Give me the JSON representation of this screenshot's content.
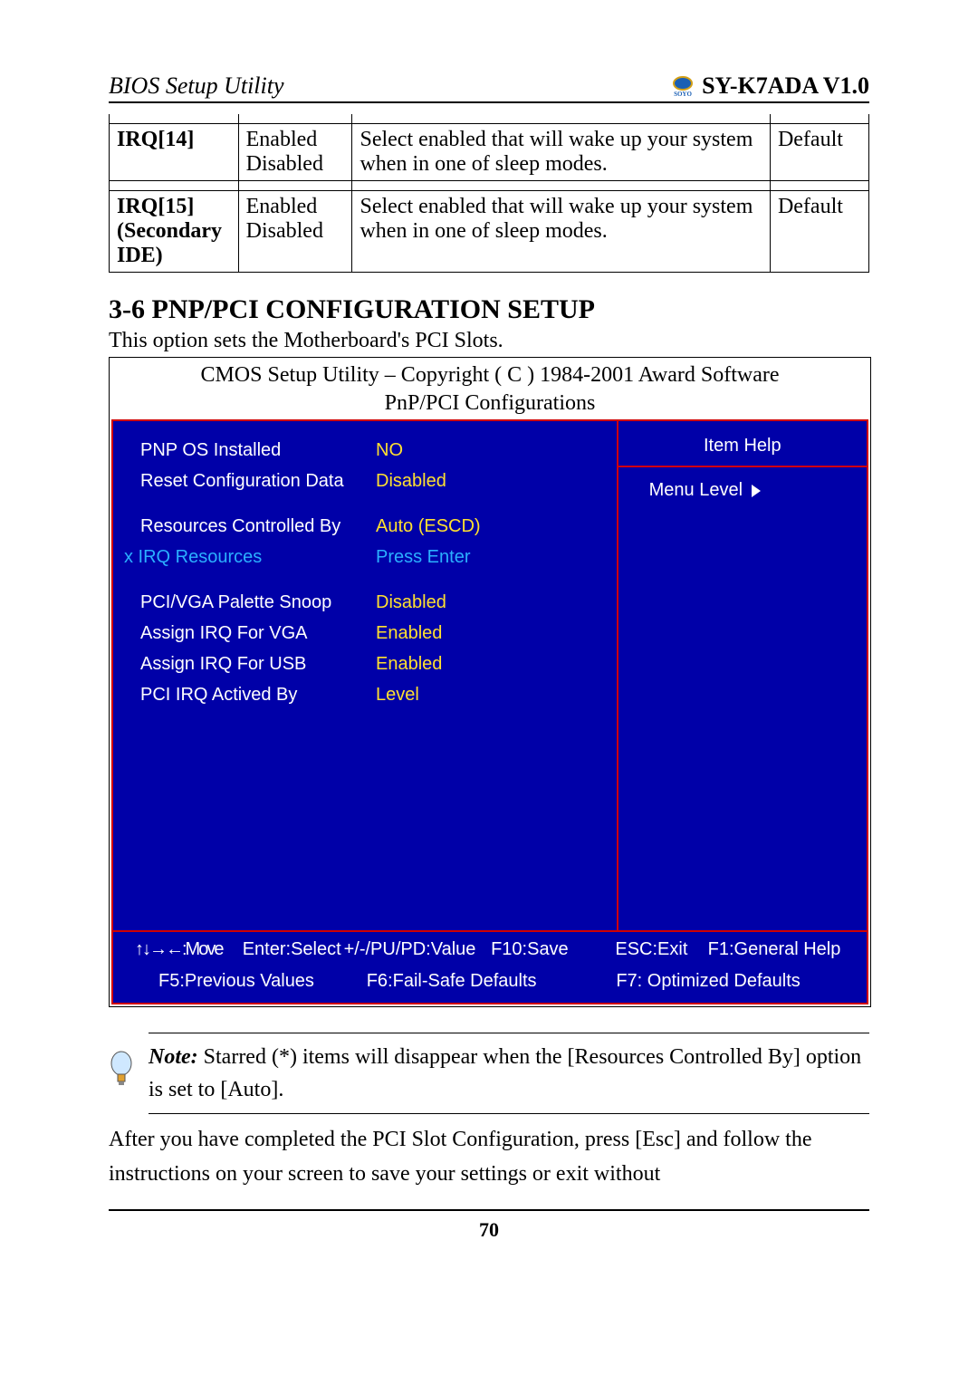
{
  "header": {
    "left": "BIOS Setup Utility",
    "right": "SY-K7ADA V1.0"
  },
  "irq_table": {
    "rows": [
      {
        "name": "IRQ[14]",
        "options": "Enabled\nDisabled",
        "desc": "Select enabled that will wake up your system when in one of sleep modes.",
        "def": "Default"
      },
      {
        "name": "IRQ[15] (Secondary IDE)",
        "options": "Enabled\nDisabled",
        "desc": "Select enabled that will wake up your system when in one of sleep modes.",
        "def": "Default"
      }
    ]
  },
  "section": {
    "heading": "3-6  PNP/PCI CONFIGURATION SETUP",
    "intro": "This option sets the Motherboard's PCI Slots."
  },
  "bios": {
    "title1": "CMOS Setup Utility – Copyright ( C ) 1984-2001 Award Software",
    "title2": "PnP/PCI Configurations",
    "items": [
      {
        "label": "PNP OS Installed",
        "value": "NO",
        "lclass": "",
        "vclass": ""
      },
      {
        "label": "Reset Configuration Data",
        "value": "Disabled",
        "lclass": "",
        "vclass": ""
      },
      {
        "spacer": true
      },
      {
        "label": "Resources Controlled By",
        "value": "Auto (ESCD)",
        "lclass": "",
        "vclass": ""
      },
      {
        "label": "x IRQ Resources",
        "value": "Press Enter",
        "lclass": "blue",
        "vclass": "cyan",
        "outdent": true
      },
      {
        "spacer": true
      },
      {
        "label": "PCI/VGA Palette Snoop",
        "value": "Disabled",
        "lclass": "",
        "vclass": ""
      },
      {
        "label": "Assign IRQ For VGA",
        "value": "Enabled",
        "lclass": "",
        "vclass": ""
      },
      {
        "label": "Assign IRQ For USB",
        "value": "Enabled",
        "lclass": "",
        "vclass": ""
      },
      {
        "label": "PCI IRQ Actived By",
        "value": "Level",
        "lclass": "",
        "vclass": ""
      }
    ],
    "help_title": "Item Help",
    "menu_level": "Menu Level",
    "footer1": {
      "a": "↑↓→←:Move",
      "b": "Enter:Select",
      "c": "+/-/PU/PD:Value",
      "d": "F10:Save",
      "e": "ESC:Exit",
      "f": "F1:General Help"
    },
    "footer2": {
      "a": "F5:Previous Values",
      "b": "F6:Fail-Safe Defaults",
      "c": "F7: Optimized Defaults"
    }
  },
  "note": {
    "label": "Note:",
    "text": " Starred (*) items will disappear when the [Resources Controlled By] option is set to [Auto]."
  },
  "after_note": "After you have completed the PCI Slot Configuration, press [Esc] and follow the instructions on your screen to save your settings or exit without",
  "page_number": "70"
}
